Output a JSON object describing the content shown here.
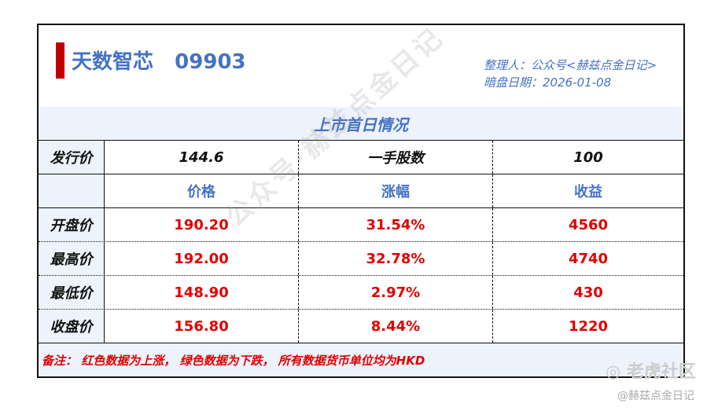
{
  "header": {
    "stock_name": "天数智芯",
    "stock_code": "09903",
    "compiler": "整理人：公众号<赫兹点金日记>",
    "date": "暗盘日期：2026-01-08"
  },
  "section_title": "上市首日情况",
  "issue": {
    "label": "发行价",
    "price": "144.6",
    "lot_label": "一手股数",
    "lot": "100"
  },
  "columns": [
    "价格",
    "涨幅",
    "收益"
  ],
  "rows": [
    {
      "label": "开盘价",
      "price": "190.20",
      "change": "31.54%",
      "profit": "4560"
    },
    {
      "label": "最高价",
      "price": "192.00",
      "change": "32.78%",
      "profit": "4740"
    },
    {
      "label": "最低价",
      "price": "148.90",
      "change": "2.97%",
      "profit": "430"
    },
    {
      "label": "收盘价",
      "price": "156.80",
      "change": "8.44%",
      "profit": "1220"
    }
  ],
  "note": "备注：  红色数据为上涨，  绿色数据为下跌，  所有数据货币单位均为HKD",
  "watermark": "公众号·赫兹点金日记",
  "footer": {
    "brand": "老虎社区",
    "handle": "@赫兹点金日记"
  },
  "colors": {
    "accent": "#4472c4",
    "up": "#e00000",
    "bar": "#c00000",
    "band": "#edf2fb"
  }
}
